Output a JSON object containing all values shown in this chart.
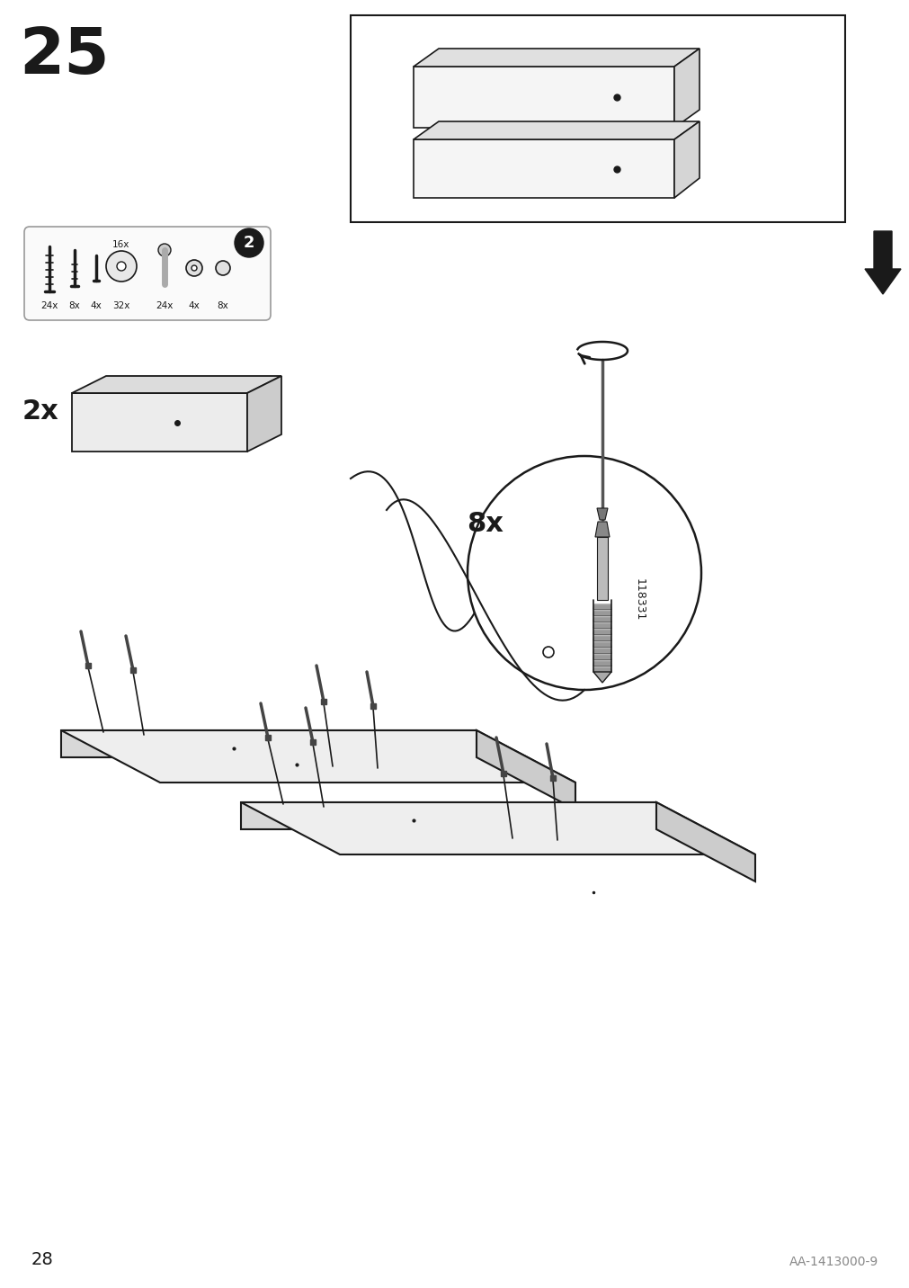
{
  "page_number": "28",
  "step_number": "25",
  "part_code": "AA-1413000-9",
  "quantity_label": "2x",
  "screw_quantity": "8x",
  "screw_code": "118331",
  "bg_color": "#ffffff",
  "line_color": "#1a1a1a",
  "light_gray": "#c8c8c8",
  "mid_gray": "#888888",
  "dark_gray": "#444444"
}
